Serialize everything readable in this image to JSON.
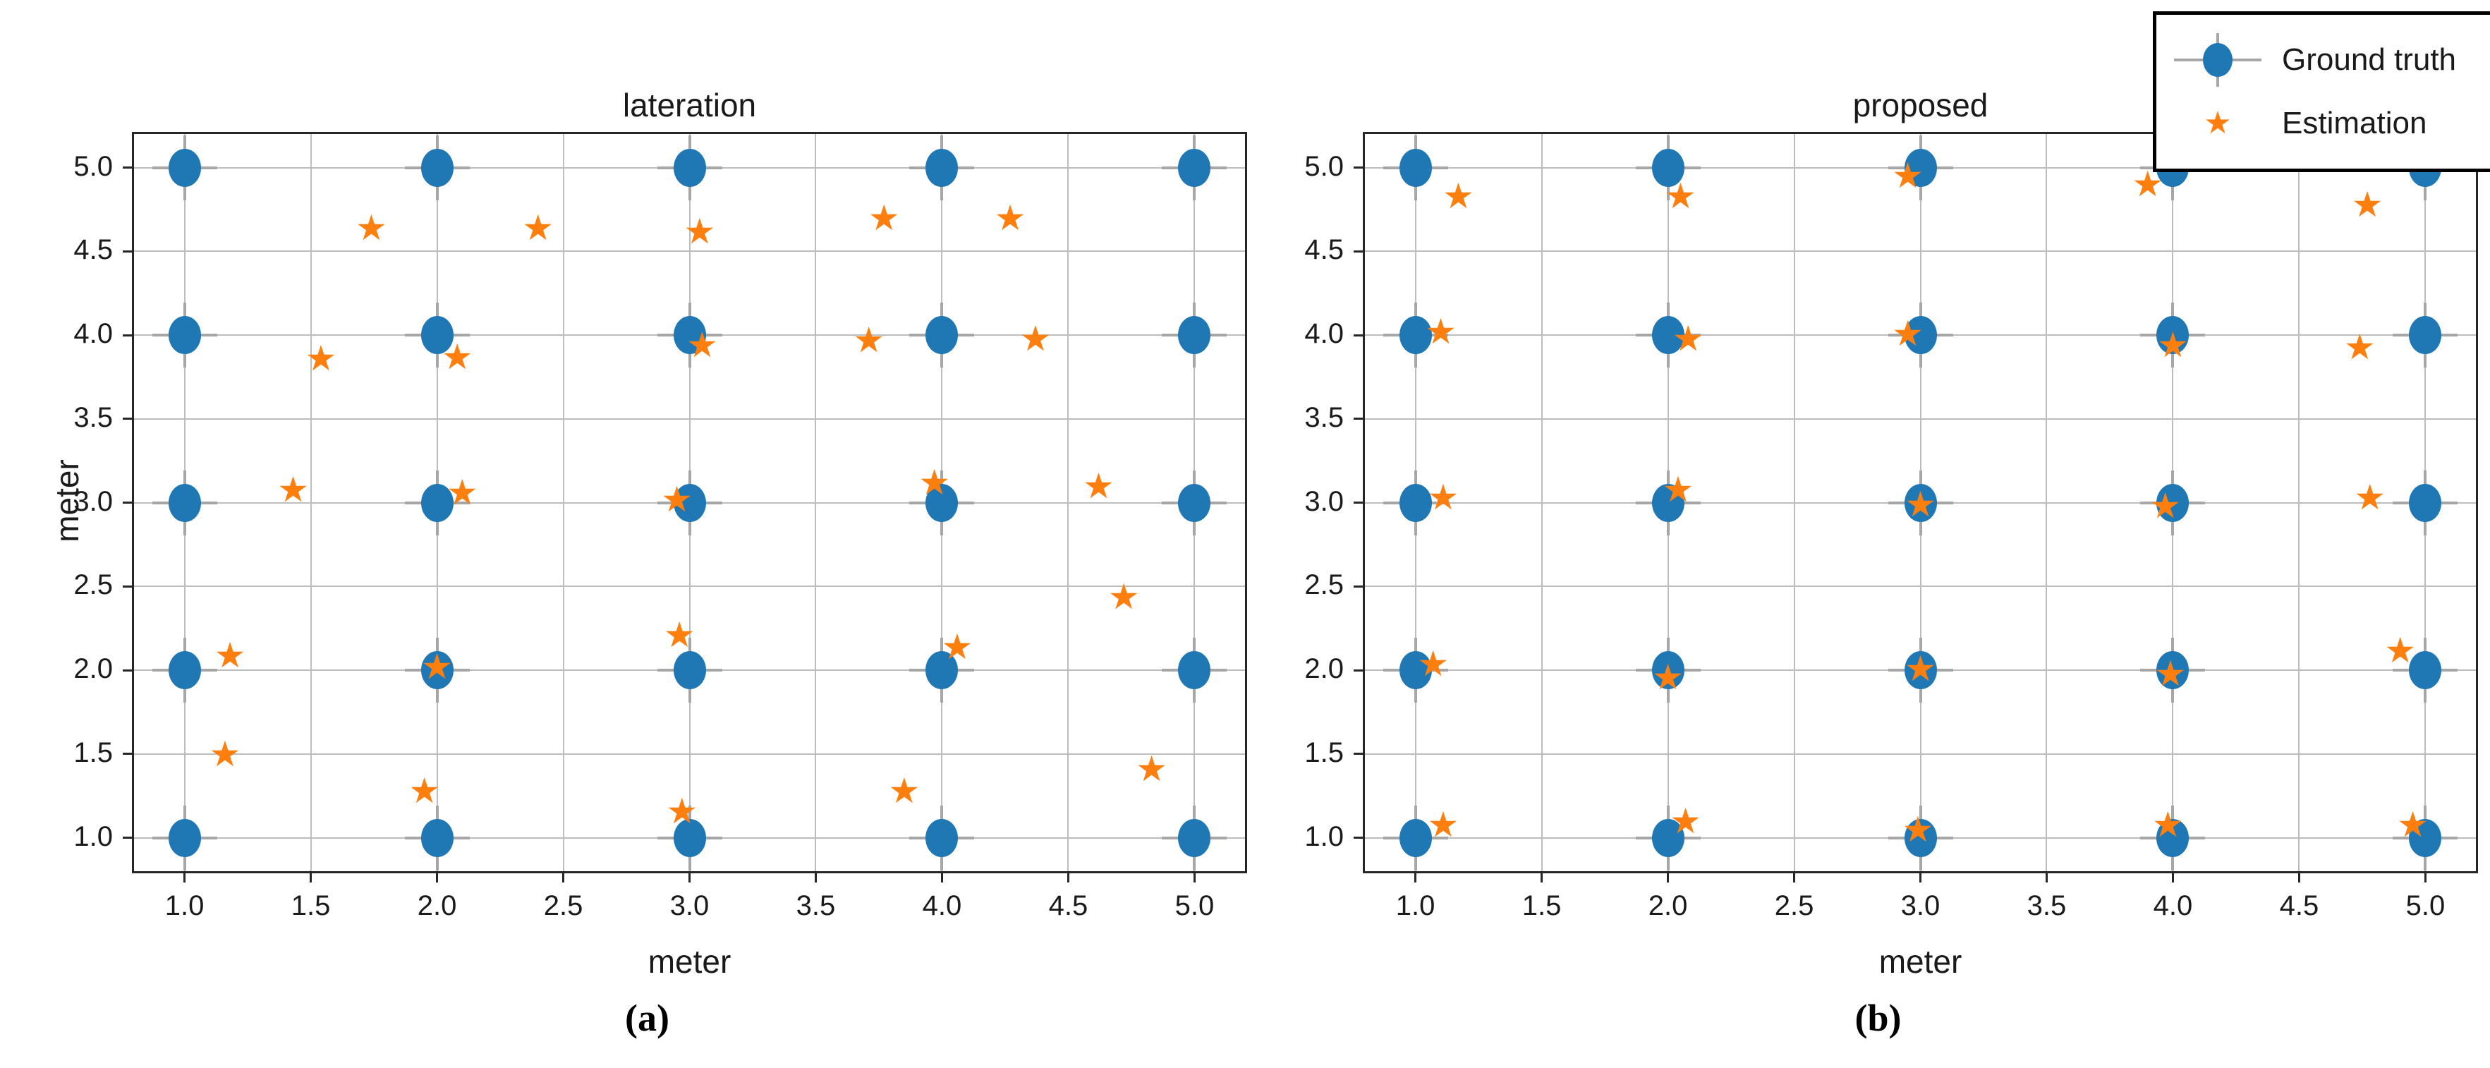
{
  "figure": {
    "background": "#ffffff"
  },
  "icons": {
    "star_glyph": "★"
  },
  "legend": {
    "position": "top-right",
    "border_color": "#000000",
    "items": [
      {
        "label": "Ground truth",
        "marker": "circle-crosshair-icon",
        "color": "#1f77b4"
      },
      {
        "label": "Estimation",
        "marker": "star-icon",
        "color": "#ff7f0e"
      }
    ]
  },
  "chart_data": [
    {
      "type": "scatter",
      "title": "lateration",
      "xlabel": "meter",
      "ylabel": "meter",
      "caption": "(a)",
      "grid": true,
      "xlim": [
        0.8,
        5.2
      ],
      "ylim": [
        0.8,
        5.2
      ],
      "xticks": [
        1.0,
        1.5,
        2.0,
        2.5,
        3.0,
        3.5,
        4.0,
        4.5,
        5.0
      ],
      "yticks": [
        1.0,
        1.5,
        2.0,
        2.5,
        3.0,
        3.5,
        4.0,
        4.5,
        5.0
      ],
      "xtick_labels": [
        "1.0",
        "1.5",
        "2.0",
        "2.5",
        "3.0",
        "3.5",
        "4.0",
        "4.5",
        "5.0"
      ],
      "ytick_labels": [
        "1.0",
        "1.5",
        "2.0",
        "2.5",
        "3.0",
        "3.5",
        "4.0",
        "4.5",
        "5.0"
      ],
      "series": [
        {
          "name": "Ground truth",
          "marker": "circle-crosshair",
          "color": "#1f77b4",
          "crosshair_color": "#a6a6a6",
          "points": [
            [
              1,
              5
            ],
            [
              2,
              5
            ],
            [
              3,
              5
            ],
            [
              4,
              5
            ],
            [
              5,
              5
            ],
            [
              1,
              4
            ],
            [
              2,
              4
            ],
            [
              3,
              4
            ],
            [
              4,
              4
            ],
            [
              5,
              4
            ],
            [
              1,
              3
            ],
            [
              2,
              3
            ],
            [
              3,
              3
            ],
            [
              4,
              3
            ],
            [
              5,
              3
            ],
            [
              1,
              2
            ],
            [
              2,
              2
            ],
            [
              3,
              2
            ],
            [
              4,
              2
            ],
            [
              5,
              2
            ],
            [
              1,
              1
            ],
            [
              2,
              1
            ],
            [
              3,
              1
            ],
            [
              4,
              1
            ],
            [
              5,
              1
            ]
          ]
        },
        {
          "name": "Estimation",
          "marker": "star",
          "color": "#ff7f0e",
          "points": [
            [
              1.74,
              4.64
            ],
            [
              2.4,
              4.64
            ],
            [
              3.04,
              4.62
            ],
            [
              3.77,
              4.7
            ],
            [
              4.27,
              4.7
            ],
            [
              1.54,
              3.86
            ],
            [
              2.08,
              3.87
            ],
            [
              3.05,
              3.94
            ],
            [
              3.71,
              3.97
            ],
            [
              4.37,
              3.98
            ],
            [
              1.43,
              3.08
            ],
            [
              2.1,
              3.06
            ],
            [
              2.95,
              3.02
            ],
            [
              3.97,
              3.12
            ],
            [
              4.62,
              3.1
            ],
            [
              1.18,
              2.09
            ],
            [
              2.0,
              2.02
            ],
            [
              2.96,
              2.21
            ],
            [
              4.06,
              2.14
            ],
            [
              4.72,
              2.44
            ],
            [
              1.16,
              1.5
            ],
            [
              1.95,
              1.28
            ],
            [
              2.97,
              1.16
            ],
            [
              3.85,
              1.28
            ],
            [
              4.83,
              1.41
            ]
          ]
        }
      ]
    },
    {
      "type": "scatter",
      "title": "proposed",
      "xlabel": "meter",
      "ylabel": "",
      "caption": "(b)",
      "grid": true,
      "xlim": [
        0.8,
        5.2
      ],
      "ylim": [
        0.8,
        5.2
      ],
      "xticks": [
        1.0,
        1.5,
        2.0,
        2.5,
        3.0,
        3.5,
        4.0,
        4.5,
        5.0
      ],
      "yticks": [
        1.0,
        1.5,
        2.0,
        2.5,
        3.0,
        3.5,
        4.0,
        4.5,
        5.0
      ],
      "xtick_labels": [
        "1.0",
        "1.5",
        "2.0",
        "2.5",
        "3.0",
        "3.5",
        "4.0",
        "4.5",
        "5.0"
      ],
      "ytick_labels": [
        "1.0",
        "1.5",
        "2.0",
        "2.5",
        "3.0",
        "3.5",
        "4.0",
        "4.5",
        "5.0"
      ],
      "series": [
        {
          "name": "Ground truth",
          "marker": "circle-crosshair",
          "color": "#1f77b4",
          "crosshair_color": "#a6a6a6",
          "points": [
            [
              1,
              5
            ],
            [
              2,
              5
            ],
            [
              3,
              5
            ],
            [
              4,
              5
            ],
            [
              5,
              5
            ],
            [
              1,
              4
            ],
            [
              2,
              4
            ],
            [
              3,
              4
            ],
            [
              4,
              4
            ],
            [
              5,
              4
            ],
            [
              1,
              3
            ],
            [
              2,
              3
            ],
            [
              3,
              3
            ],
            [
              4,
              3
            ],
            [
              5,
              3
            ],
            [
              1,
              2
            ],
            [
              2,
              2
            ],
            [
              3,
              2
            ],
            [
              4,
              2
            ],
            [
              5,
              2
            ],
            [
              1,
              1
            ],
            [
              2,
              1
            ],
            [
              3,
              1
            ],
            [
              4,
              1
            ],
            [
              5,
              1
            ]
          ]
        },
        {
          "name": "Estimation",
          "marker": "star",
          "color": "#ff7f0e",
          "points": [
            [
              1.17,
              4.83
            ],
            [
              2.05,
              4.83
            ],
            [
              2.95,
              4.95
            ],
            [
              3.9,
              4.9
            ],
            [
              4.77,
              4.78
            ],
            [
              1.1,
              4.02
            ],
            [
              2.08,
              3.98
            ],
            [
              2.95,
              4.01
            ],
            [
              4.0,
              3.94
            ],
            [
              4.74,
              3.93
            ],
            [
              1.11,
              3.03
            ],
            [
              2.04,
              3.08
            ],
            [
              3.0,
              2.99
            ],
            [
              3.97,
              2.98
            ],
            [
              4.78,
              3.03
            ],
            [
              1.07,
              2.04
            ],
            [
              2.0,
              1.96
            ],
            [
              3.0,
              2.01
            ],
            [
              3.99,
              1.98
            ],
            [
              4.9,
              2.12
            ],
            [
              1.11,
              1.08
            ],
            [
              2.07,
              1.1
            ],
            [
              2.99,
              1.05
            ],
            [
              3.98,
              1.08
            ],
            [
              4.95,
              1.08
            ]
          ]
        }
      ]
    }
  ]
}
